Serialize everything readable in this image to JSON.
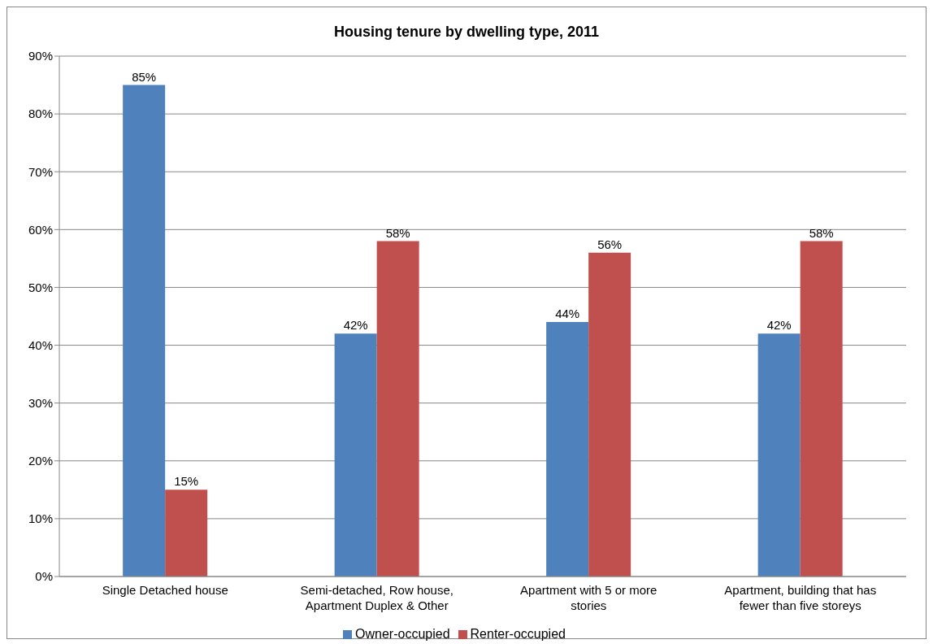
{
  "chart_data": {
    "type": "bar",
    "title": "Housing tenure by dwelling type, 2011",
    "categories": [
      "Single Detached house",
      "Semi-detached, Row house, Apartment Duplex & Other",
      "Apartment with 5 or more stories",
      "Apartment, building that has fewer than five storeys"
    ],
    "series": [
      {
        "name": "Owner-occupied",
        "color": "#4f81bd",
        "values": [
          85,
          42,
          44,
          42
        ],
        "value_labels": [
          "85%",
          "42%",
          "44%",
          "42%"
        ]
      },
      {
        "name": "Renter-occupied",
        "color": "#c0504d",
        "values": [
          15,
          58,
          56,
          58
        ],
        "value_labels": [
          "15%",
          "58%",
          "56%",
          "58%"
        ]
      }
    ],
    "ylim": [
      0,
      90
    ],
    "yticks": [
      {
        "value": 0,
        "label": "0%"
      },
      {
        "value": 10,
        "label": "10%"
      },
      {
        "value": 20,
        "label": "20%"
      },
      {
        "value": 30,
        "label": "30%"
      },
      {
        "value": 40,
        "label": "40%"
      },
      {
        "value": 50,
        "label": "50%"
      },
      {
        "value": 60,
        "label": "60%"
      },
      {
        "value": 70,
        "label": "70%"
      },
      {
        "value": 80,
        "label": "80%"
      },
      {
        "value": 90,
        "label": "90%"
      }
    ],
    "grid": "y",
    "legend": "bottom"
  }
}
